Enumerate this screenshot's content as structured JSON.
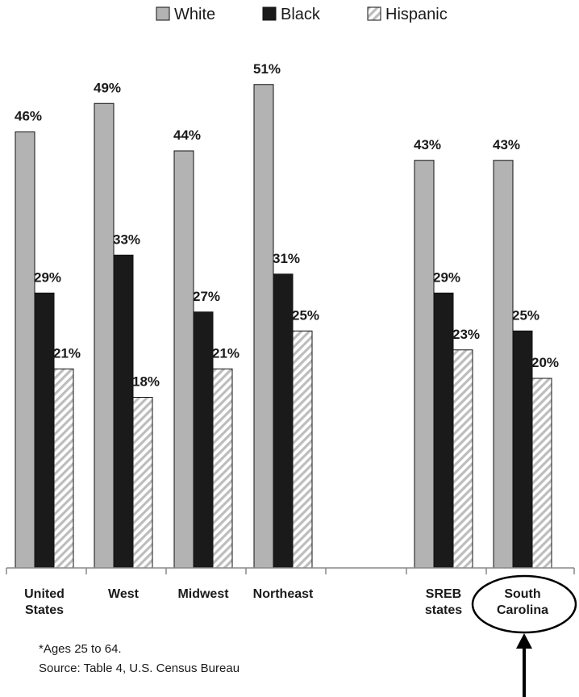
{
  "chart_data": {
    "type": "bar",
    "categories": [
      [
        "United",
        "States"
      ],
      [
        "West"
      ],
      [
        "Midwest"
      ],
      [
        "Northeast"
      ],
      [
        "SREB",
        "states"
      ],
      [
        "South",
        "Carolina"
      ]
    ],
    "series": [
      {
        "name": "White",
        "values": [
          46,
          49,
          44,
          51,
          43,
          43
        ],
        "labels": [
          "46%",
          "49%",
          "44%",
          "51%",
          "43%",
          "43%"
        ]
      },
      {
        "name": "Black",
        "values": [
          29,
          33,
          27,
          31,
          29,
          25
        ],
        "labels": [
          "29%",
          "33%",
          "27%",
          "31%",
          "29%",
          "25%"
        ]
      },
      {
        "name": "Hispanic",
        "values": [
          21,
          18,
          21,
          25,
          23,
          20
        ],
        "labels": [
          "21%",
          "18%",
          "21%",
          "25%",
          "23%",
          "20%"
        ]
      }
    ],
    "ylim": [
      0,
      55
    ],
    "grid": false,
    "legend": "top",
    "highlighted_category": "South Carolina",
    "colors": {
      "White": "#b3b3b3",
      "Black": "#1a1a1a",
      "Hispanic": "hatched"
    }
  },
  "footnotes": {
    "ages": "*Ages 25 to 64.",
    "source": "Source: Table 4, U.S. Census Bureau"
  }
}
